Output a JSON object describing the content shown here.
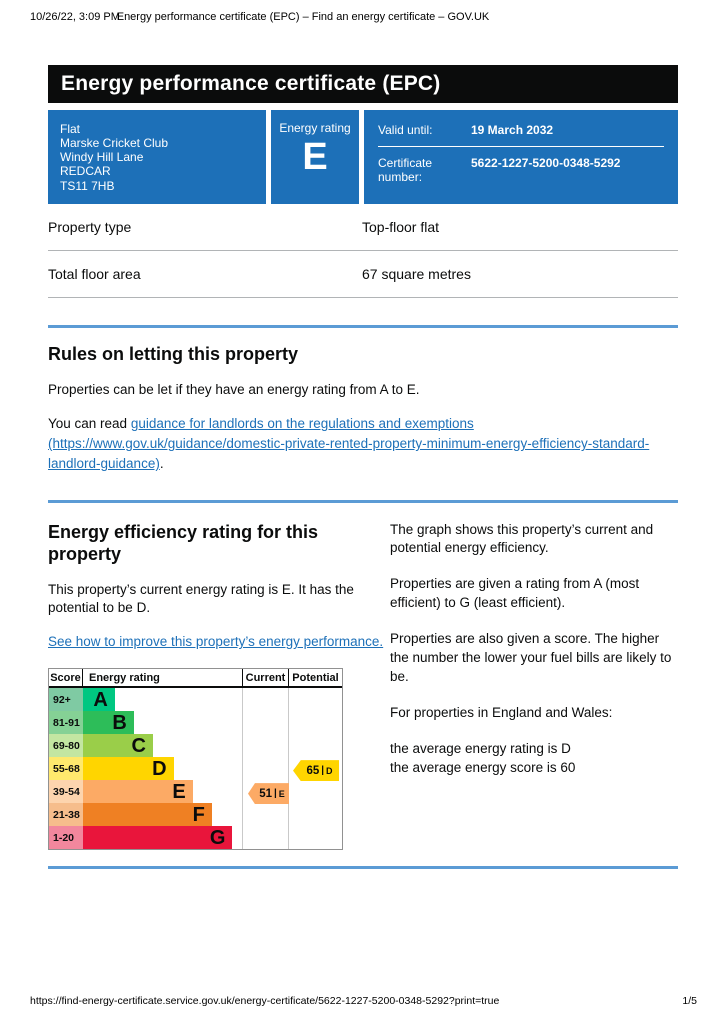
{
  "print_header": {
    "datetime": "10/26/22, 3:09 PM",
    "title": "Energy performance certificate (EPC) – Find an energy certificate – GOV.UK"
  },
  "banner": {
    "title": "Energy performance certificate (EPC)"
  },
  "summary_box": {
    "address_lines": [
      "Flat",
      "Marske Cricket Club",
      "Windy Hill Lane",
      "REDCAR",
      "TS11 7HB"
    ],
    "energy_rating_label": "Energy rating",
    "energy_rating_value": "E",
    "valid_until_label": "Valid until:",
    "valid_until_value": "19 March 2032",
    "certificate_number_label": "Certificate number:",
    "certificate_number_value": "5622-1227-5200-0348-5292",
    "box_color": "#1d70b8"
  },
  "property_table": {
    "rows": [
      {
        "label": "Property type",
        "value": "Top-floor flat"
      },
      {
        "label": "Total floor area",
        "value": "67 square metres"
      }
    ]
  },
  "rules_section": {
    "heading": "Rules on letting this property",
    "paragraph1": "Properties can be let if they have an energy rating from A to E.",
    "paragraph2_prefix": "You can read ",
    "link_text": "guidance for landlords on the regulations and exemptions (https://www.gov.uk/guidance/domestic-private-rented-property-minimum-energy-efficiency-standard-landlord-guidance)",
    "paragraph2_suffix": "."
  },
  "rating_section": {
    "heading": "Energy efficiency rating for this property",
    "paragraph1": "This property’s current energy rating is E. It has the potential to be D.",
    "link_text": "See how to improve this property’s energy performance.",
    "right_paragraphs": [
      "The graph shows this property’s current and potential energy efficiency.",
      "Properties are given a rating from A (most efficient) to G (least efficient).",
      "Properties are also given a score. The higher the number the lower your fuel bills are likely to be.",
      "For properties in England and Wales:"
    ],
    "stats_lines": "the average energy rating is D\nthe average energy score is 60"
  },
  "chart_data": {
    "type": "bar",
    "title": "Energy efficiency rating chart",
    "headers": [
      "Score",
      "Energy rating",
      "Current",
      "Potential"
    ],
    "separator": "|",
    "bands": [
      {
        "score": "92+",
        "letter": "A",
        "color": "#00c781",
        "tint": "#7fcaa3",
        "width_pct": 20
      },
      {
        "score": "81-91",
        "letter": "B",
        "color": "#2dbd59",
        "tint": "#85d195",
        "width_pct": 32
      },
      {
        "score": "69-80",
        "letter": "C",
        "color": "#9ace49",
        "tint": "#c3e6a2",
        "width_pct": 44
      },
      {
        "score": "55-68",
        "letter": "D",
        "color": "#ffd500",
        "tint": "#ffe96d",
        "width_pct": 57
      },
      {
        "score": "39-54",
        "letter": "E",
        "color": "#fcaa65",
        "tint": "#fdd4ae",
        "width_pct": 69
      },
      {
        "score": "21-38",
        "letter": "F",
        "color": "#ef8023",
        "tint": "#f6bd8c",
        "width_pct": 81
      },
      {
        "score": "1-20",
        "letter": "G",
        "color": "#e9153b",
        "tint": "#f2879d",
        "width_pct": 94
      }
    ],
    "current": {
      "score": "51",
      "letter": "E",
      "color": "#fcaa65",
      "row": 4
    },
    "potential": {
      "score": "65",
      "letter": "D",
      "color": "#ffd500",
      "row": 3
    }
  },
  "footer": {
    "url": "https://find-energy-certificate.service.gov.uk/energy-certificate/5622-1227-5200-0348-5292?print=true",
    "page": "1/5"
  }
}
